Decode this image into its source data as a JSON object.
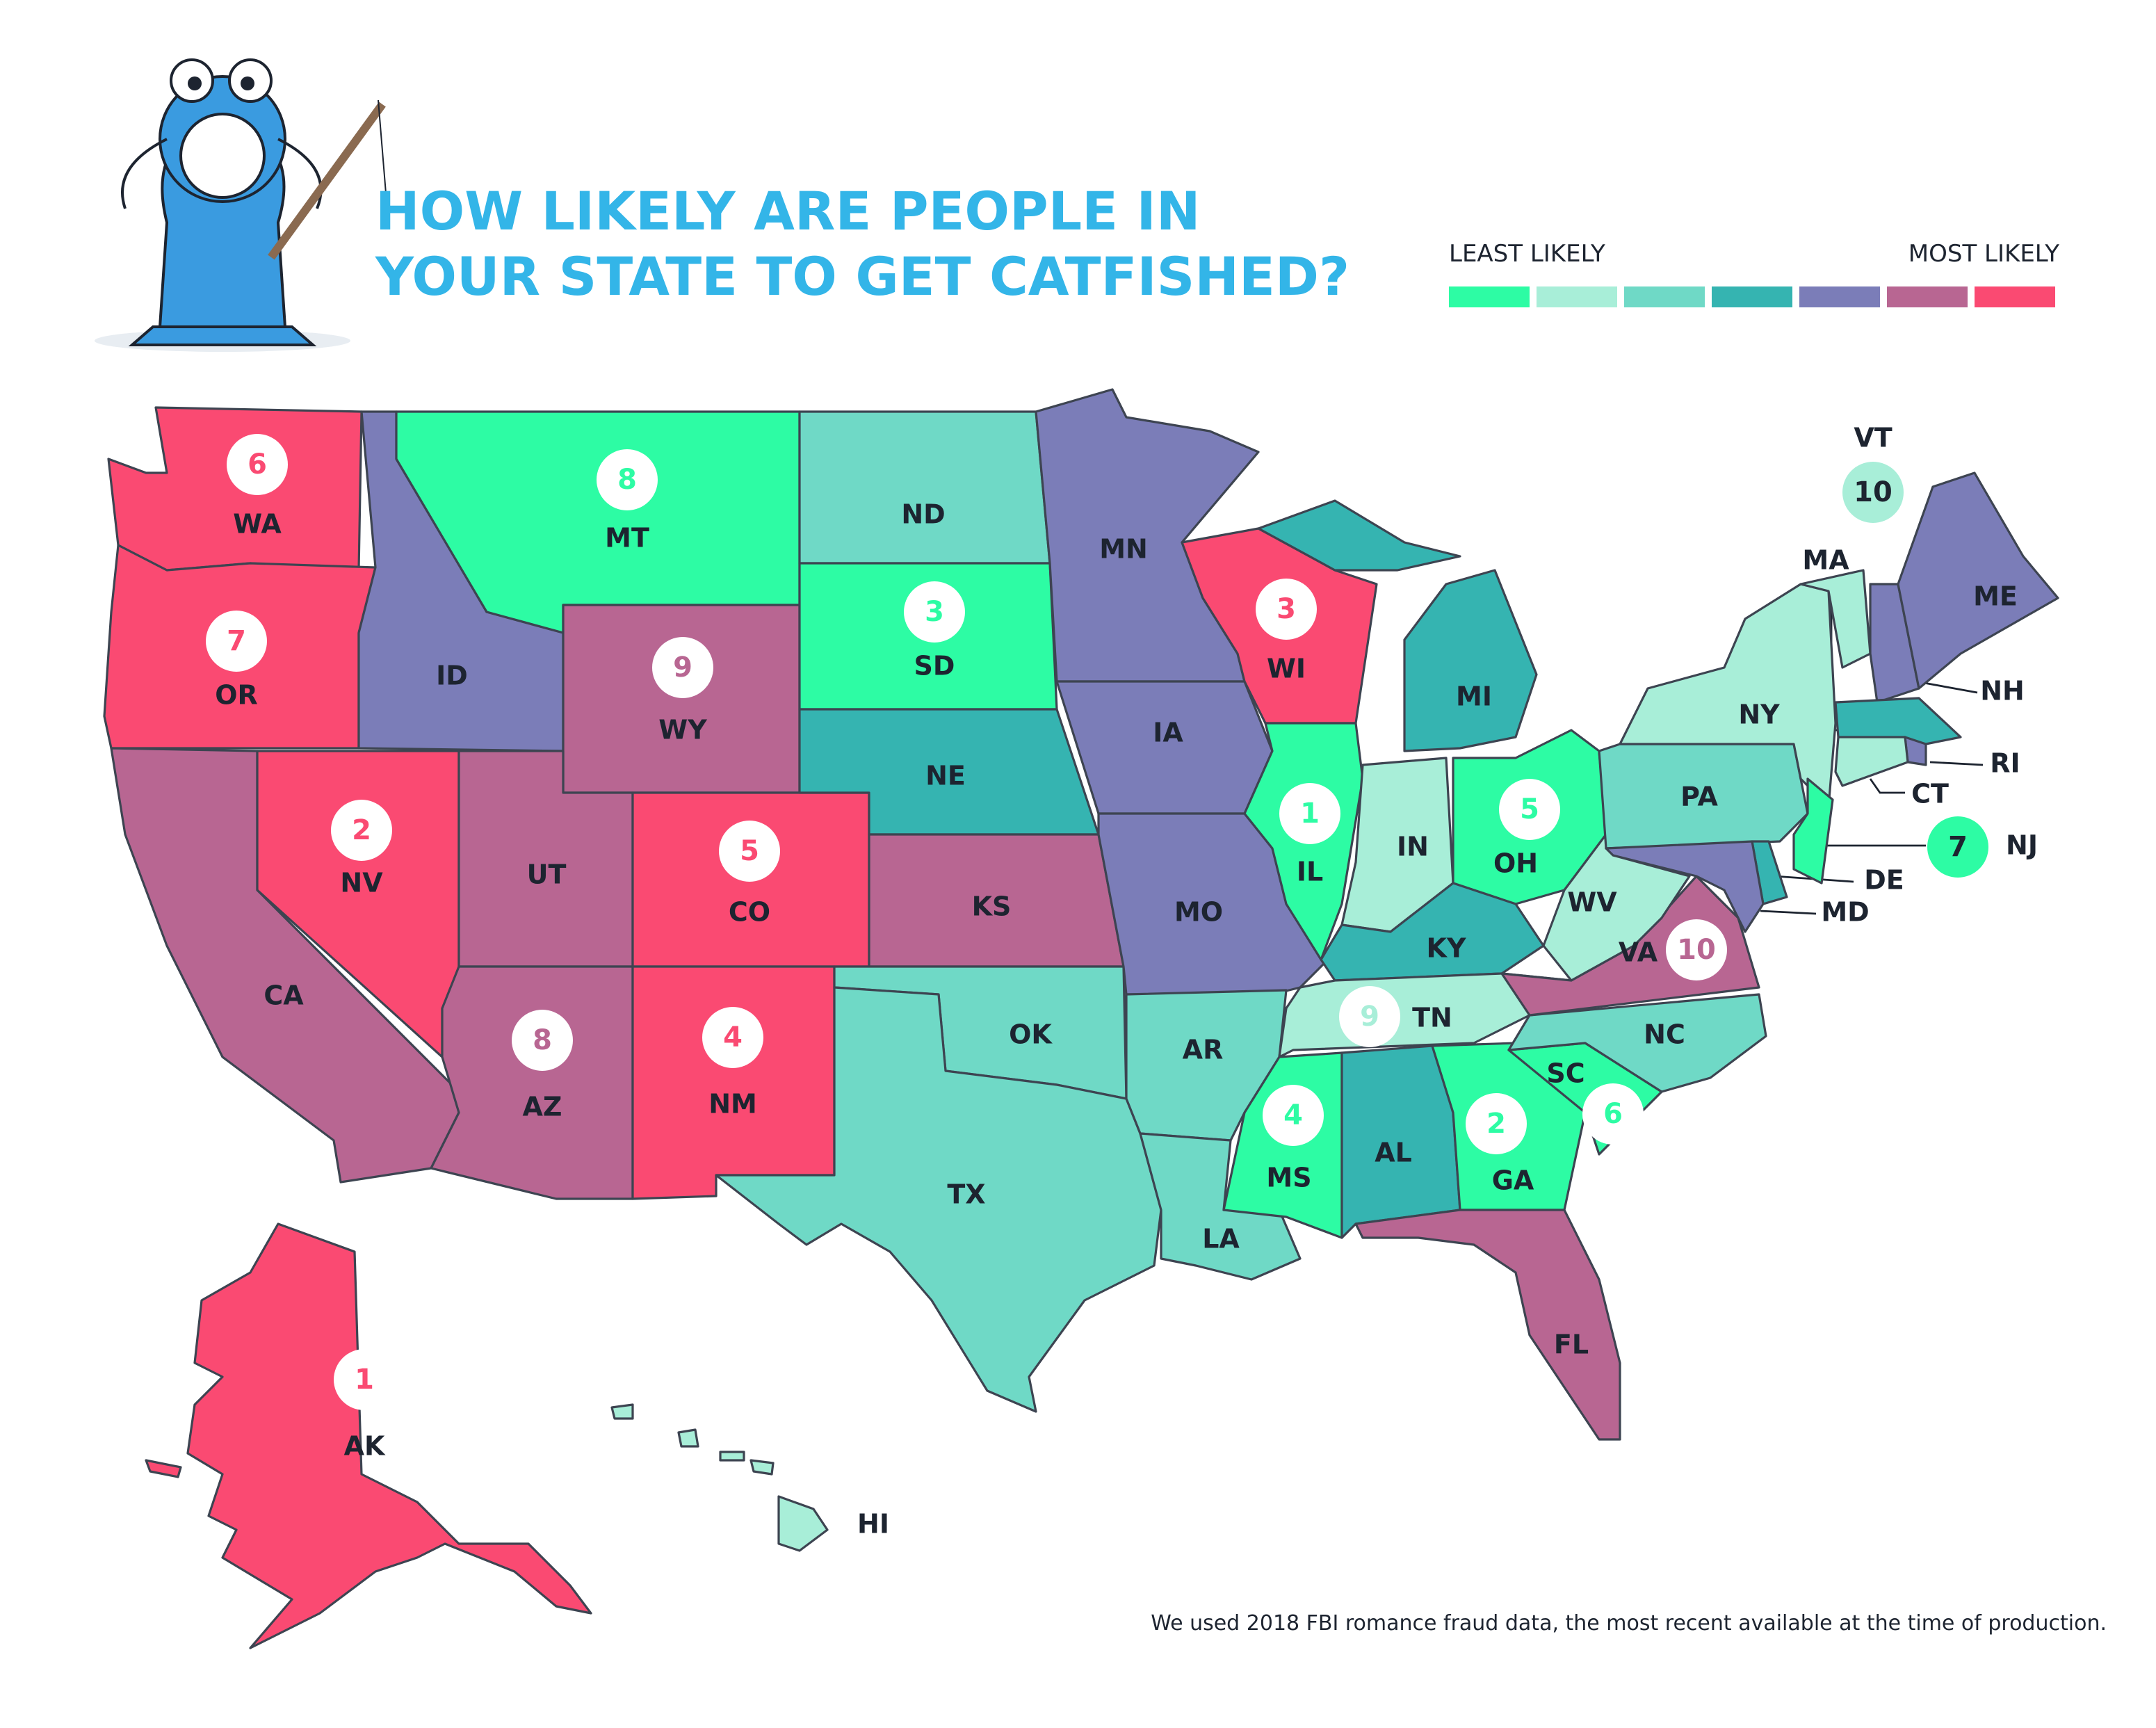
{
  "header": {
    "title_line1": "HOW LIKELY ARE PEOPLE IN",
    "title_line2": "YOUR STATE TO GET CATFISHED?"
  },
  "legend": {
    "low_label": "LEAST LIKELY",
    "high_label": "MOST LIKELY",
    "colors": [
      "#2dfca4",
      "#a8eed8",
      "#6fd9c6",
      "#35b4b1",
      "#7b7db8",
      "#b86692",
      "#fa4a72"
    ]
  },
  "states": [
    {
      "name": "WA",
      "color": "#fa4a72",
      "rank": 6
    },
    {
      "name": "OR",
      "color": "#fa4a72",
      "rank": 7
    },
    {
      "name": "CA",
      "color": "#b86692"
    },
    {
      "name": "NV",
      "color": "#fa4a72",
      "rank": 2
    },
    {
      "name": "ID",
      "color": "#7b7db8"
    },
    {
      "name": "MT",
      "color": "#2dfca4",
      "rank": 8
    },
    {
      "name": "WY",
      "color": "#b86692",
      "rank": 9
    },
    {
      "name": "UT",
      "color": "#b86692"
    },
    {
      "name": "AZ",
      "color": "#b86692",
      "rank": 8
    },
    {
      "name": "CO",
      "color": "#fa4a72",
      "rank": 5
    },
    {
      "name": "NM",
      "color": "#fa4a72",
      "rank": 4
    },
    {
      "name": "ND",
      "color": "#6fd9c6"
    },
    {
      "name": "SD",
      "color": "#2dfca4",
      "rank": 3
    },
    {
      "name": "NE",
      "color": "#35b4b1"
    },
    {
      "name": "KS",
      "color": "#b86692"
    },
    {
      "name": "OK",
      "color": "#6fd9c6"
    },
    {
      "name": "TX",
      "color": "#6fd9c6"
    },
    {
      "name": "MN",
      "color": "#7b7db8"
    },
    {
      "name": "IA",
      "color": "#7b7db8"
    },
    {
      "name": "MO",
      "color": "#7b7db8"
    },
    {
      "name": "AR",
      "color": "#6fd9c6"
    },
    {
      "name": "LA",
      "color": "#6fd9c6"
    },
    {
      "name": "WI",
      "color": "#fa4a72",
      "rank": 3
    },
    {
      "name": "IL",
      "color": "#2dfca4",
      "rank": 1
    },
    {
      "name": "MI",
      "color": "#35b4b1"
    },
    {
      "name": "IN",
      "color": "#a8eed8"
    },
    {
      "name": "OH",
      "color": "#2dfca4",
      "rank": 5
    },
    {
      "name": "KY",
      "color": "#35b4b1"
    },
    {
      "name": "TN",
      "color": "#a8eed8",
      "rank": 9
    },
    {
      "name": "MS",
      "color": "#2dfca4",
      "rank": 4
    },
    {
      "name": "AL",
      "color": "#35b4b1"
    },
    {
      "name": "GA",
      "color": "#2dfca4",
      "rank": 2
    },
    {
      "name": "FL",
      "color": "#b86692"
    },
    {
      "name": "SC",
      "color": "#2dfca4",
      "rank": 6
    },
    {
      "name": "NC",
      "color": "#6fd9c6"
    },
    {
      "name": "VA",
      "color": "#b86692",
      "rank": 10
    },
    {
      "name": "WV",
      "color": "#a8eed8"
    },
    {
      "name": "PA",
      "color": "#6fd9c6"
    },
    {
      "name": "NY",
      "color": "#a8eed8"
    },
    {
      "name": "VT",
      "color": "#a8eed8",
      "rank": 10
    },
    {
      "name": "NH",
      "color": "#7b7db8"
    },
    {
      "name": "ME",
      "color": "#7b7db8"
    },
    {
      "name": "MA",
      "color": "#35b4b1"
    },
    {
      "name": "RI",
      "color": "#7b7db8"
    },
    {
      "name": "CT",
      "color": "#a8eed8"
    },
    {
      "name": "NJ",
      "color": "#2dfca4",
      "rank": 7
    },
    {
      "name": "DE",
      "color": "#35b4b1"
    },
    {
      "name": "MD",
      "color": "#7b7db8"
    },
    {
      "name": "AK",
      "color": "#fa4a72",
      "rank": 1
    },
    {
      "name": "HI",
      "color": "#a8eed8"
    }
  ],
  "footnote": "We used 2018 FBI romance fraud data, the most recent available at the time of production."
}
